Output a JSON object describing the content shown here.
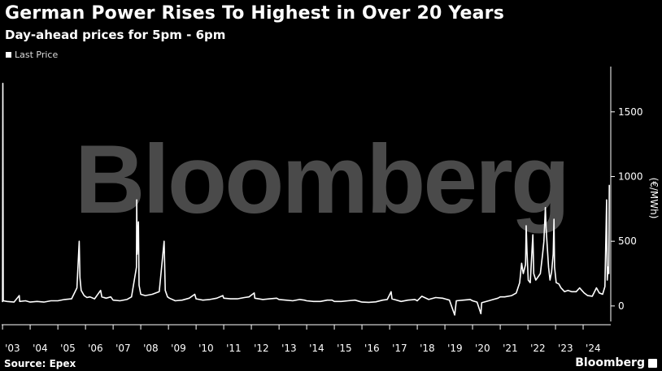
{
  "header": {
    "title": "German Power Rises To Highest in Over 20 Years",
    "subtitle": "Day-ahead prices for 5pm - 6pm"
  },
  "footer": {
    "source": "Source: Epex",
    "brand": "Bloomberg",
    "watermark": "Bloomberg"
  },
  "colors": {
    "background": "#000000",
    "line": "#ffffff",
    "watermark": "#4a4a4a"
  },
  "chart_data": {
    "type": "line",
    "title": "German Power Rises To Highest in Over 20 Years",
    "subtitle": "Day-ahead prices for 5pm - 6pm",
    "ylabel": "(€/MWh)",
    "ylim": [
      -120,
      1850
    ],
    "yticks": [
      0,
      500,
      1000,
      1500
    ],
    "ytick_labels": [
      "0",
      "500",
      "1000",
      "1500"
    ],
    "xlim": [
      "2002-12-20",
      "2024-12-31"
    ],
    "xticks": [
      "2003-01-01",
      "2004-01-01",
      "2005-01-01",
      "2006-01-01",
      "2007-01-01",
      "2008-01-01",
      "2009-01-01",
      "2010-01-01",
      "2011-01-01",
      "2012-01-01",
      "2013-01-01",
      "2014-01-01",
      "2015-01-01",
      "2016-01-01",
      "2017-01-01",
      "2018-01-01",
      "2019-01-01",
      "2020-01-01",
      "2021-01-01",
      "2022-01-01",
      "2023-01-01",
      "2024-01-01"
    ],
    "xtick_labels": [
      "'03",
      "'04",
      "'05",
      "'06",
      "'07",
      "'08",
      "'09",
      "'10",
      "'11",
      "'12",
      "'13",
      "'14",
      "'15",
      "'16",
      "'17",
      "'18",
      "'19",
      "'20",
      "'21",
      "'22",
      "'23",
      "'24"
    ],
    "legend": {
      "position": "top-left",
      "entries": [
        "Last Price"
      ]
    },
    "series": [
      {
        "name": "Last Price",
        "points": [
          [
            "2003-01-01",
            30
          ],
          [
            "2003-01-05",
            1720
          ],
          [
            "2003-01-10",
            40
          ],
          [
            "2003-03-01",
            35
          ],
          [
            "2003-06-01",
            30
          ],
          [
            "2003-08-10",
            80
          ],
          [
            "2003-08-15",
            35
          ],
          [
            "2003-11-01",
            40
          ],
          [
            "2004-01-01",
            30
          ],
          [
            "2004-04-01",
            35
          ],
          [
            "2004-07-01",
            30
          ],
          [
            "2004-10-01",
            40
          ],
          [
            "2005-01-01",
            40
          ],
          [
            "2005-04-01",
            50
          ],
          [
            "2005-07-01",
            55
          ],
          [
            "2005-09-10",
            140
          ],
          [
            "2005-10-10",
            500
          ],
          [
            "2005-10-20",
            220
          ],
          [
            "2005-11-05",
            120
          ],
          [
            "2005-12-15",
            80
          ],
          [
            "2006-01-20",
            65
          ],
          [
            "2006-03-01",
            70
          ],
          [
            "2006-05-01",
            55
          ],
          [
            "2006-07-20",
            120
          ],
          [
            "2006-08-05",
            70
          ],
          [
            "2006-10-01",
            60
          ],
          [
            "2006-12-01",
            70
          ],
          [
            "2007-01-01",
            45
          ],
          [
            "2007-04-01",
            40
          ],
          [
            "2007-07-01",
            50
          ],
          [
            "2007-09-01",
            70
          ],
          [
            "2007-11-05",
            300
          ],
          [
            "2007-11-08",
            820
          ],
          [
            "2007-11-15",
            400
          ],
          [
            "2007-12-01",
            650
          ],
          [
            "2007-12-10",
            160
          ],
          [
            "2008-01-01",
            90
          ],
          [
            "2008-03-01",
            80
          ],
          [
            "2008-06-01",
            90
          ],
          [
            "2008-09-01",
            110
          ],
          [
            "2008-11-05",
            500
          ],
          [
            "2008-11-20",
            120
          ],
          [
            "2008-12-20",
            70
          ],
          [
            "2009-01-15",
            60
          ],
          [
            "2009-04-01",
            40
          ],
          [
            "2009-07-01",
            45
          ],
          [
            "2009-10-01",
            60
          ],
          [
            "2009-12-15",
            90
          ],
          [
            "2010-01-01",
            55
          ],
          [
            "2010-04-01",
            45
          ],
          [
            "2010-07-01",
            50
          ],
          [
            "2010-10-01",
            60
          ],
          [
            "2010-12-20",
            80
          ],
          [
            "2011-01-01",
            60
          ],
          [
            "2011-04-01",
            55
          ],
          [
            "2011-07-01",
            55
          ],
          [
            "2011-10-01",
            65
          ],
          [
            "2011-12-01",
            70
          ],
          [
            "2012-02-08",
            100
          ],
          [
            "2012-02-15",
            60
          ],
          [
            "2012-06-01",
            50
          ],
          [
            "2012-09-01",
            55
          ],
          [
            "2012-12-01",
            60
          ],
          [
            "2013-01-01",
            50
          ],
          [
            "2013-04-01",
            45
          ],
          [
            "2013-07-01",
            40
          ],
          [
            "2013-10-01",
            50
          ],
          [
            "2013-12-01",
            45
          ],
          [
            "2014-01-01",
            40
          ],
          [
            "2014-04-01",
            35
          ],
          [
            "2014-07-01",
            35
          ],
          [
            "2014-10-01",
            45
          ],
          [
            "2014-12-01",
            45
          ],
          [
            "2015-01-01",
            35
          ],
          [
            "2015-04-01",
            35
          ],
          [
            "2015-07-01",
            40
          ],
          [
            "2015-10-01",
            45
          ],
          [
            "2015-12-01",
            35
          ],
          [
            "2016-01-01",
            30
          ],
          [
            "2016-04-01",
            28
          ],
          [
            "2016-07-01",
            32
          ],
          [
            "2016-10-01",
            45
          ],
          [
            "2016-12-01",
            50
          ],
          [
            "2017-01-20",
            110
          ],
          [
            "2017-02-01",
            55
          ],
          [
            "2017-06-01",
            35
          ],
          [
            "2017-09-01",
            45
          ],
          [
            "2017-12-01",
            50
          ],
          [
            "2018-01-01",
            40
          ],
          [
            "2018-03-01",
            75
          ],
          [
            "2018-06-01",
            50
          ],
          [
            "2018-09-01",
            65
          ],
          [
            "2018-12-01",
            60
          ],
          [
            "2019-01-01",
            55
          ],
          [
            "2019-03-01",
            45
          ],
          [
            "2019-05-10",
            -70
          ],
          [
            "2019-06-01",
            40
          ],
          [
            "2019-09-01",
            45
          ],
          [
            "2019-12-01",
            50
          ],
          [
            "2020-01-01",
            40
          ],
          [
            "2020-03-01",
            30
          ],
          [
            "2020-04-20",
            -60
          ],
          [
            "2020-05-01",
            25
          ],
          [
            "2020-08-01",
            40
          ],
          [
            "2020-10-01",
            50
          ],
          [
            "2020-12-01",
            60
          ],
          [
            "2021-01-01",
            70
          ],
          [
            "2021-03-01",
            70
          ],
          [
            "2021-06-01",
            80
          ],
          [
            "2021-08-01",
            100
          ],
          [
            "2021-09-15",
            180
          ],
          [
            "2021-10-10",
            330
          ],
          [
            "2021-11-01",
            250
          ],
          [
            "2021-12-01",
            320
          ],
          [
            "2021-12-10",
            620
          ],
          [
            "2021-12-20",
            420
          ],
          [
            "2022-01-05",
            200
          ],
          [
            "2022-02-01",
            180
          ],
          [
            "2022-03-08",
            550
          ],
          [
            "2022-03-20",
            250
          ],
          [
            "2022-04-15",
            200
          ],
          [
            "2022-05-10",
            220
          ],
          [
            "2022-06-15",
            250
          ],
          [
            "2022-07-15",
            400
          ],
          [
            "2022-08-01",
            500
          ],
          [
            "2022-08-20",
            760
          ],
          [
            "2022-08-30",
            600
          ],
          [
            "2022-09-15",
            450
          ],
          [
            "2022-10-01",
            300
          ],
          [
            "2022-10-20",
            200
          ],
          [
            "2022-11-10",
            260
          ],
          [
            "2022-12-01",
            400
          ],
          [
            "2022-12-12",
            670
          ],
          [
            "2022-12-20",
            300
          ],
          [
            "2023-01-10",
            180
          ],
          [
            "2023-02-15",
            170
          ],
          [
            "2023-03-15",
            140
          ],
          [
            "2023-05-01",
            110
          ],
          [
            "2023-06-15",
            120
          ],
          [
            "2023-08-01",
            110
          ],
          [
            "2023-10-01",
            110
          ],
          [
            "2023-11-15",
            140
          ],
          [
            "2023-12-15",
            120
          ],
          [
            "2024-01-15",
            100
          ],
          [
            "2024-03-01",
            80
          ],
          [
            "2024-05-01",
            75
          ],
          [
            "2024-06-25",
            140
          ],
          [
            "2024-08-01",
            100
          ],
          [
            "2024-09-15",
            90
          ],
          [
            "2024-10-15",
            150
          ],
          [
            "2024-11-06",
            820
          ],
          [
            "2024-11-15",
            200
          ],
          [
            "2024-11-25",
            300
          ],
          [
            "2024-12-05",
            250
          ],
          [
            "2024-12-12",
            936
          ]
        ]
      }
    ]
  }
}
